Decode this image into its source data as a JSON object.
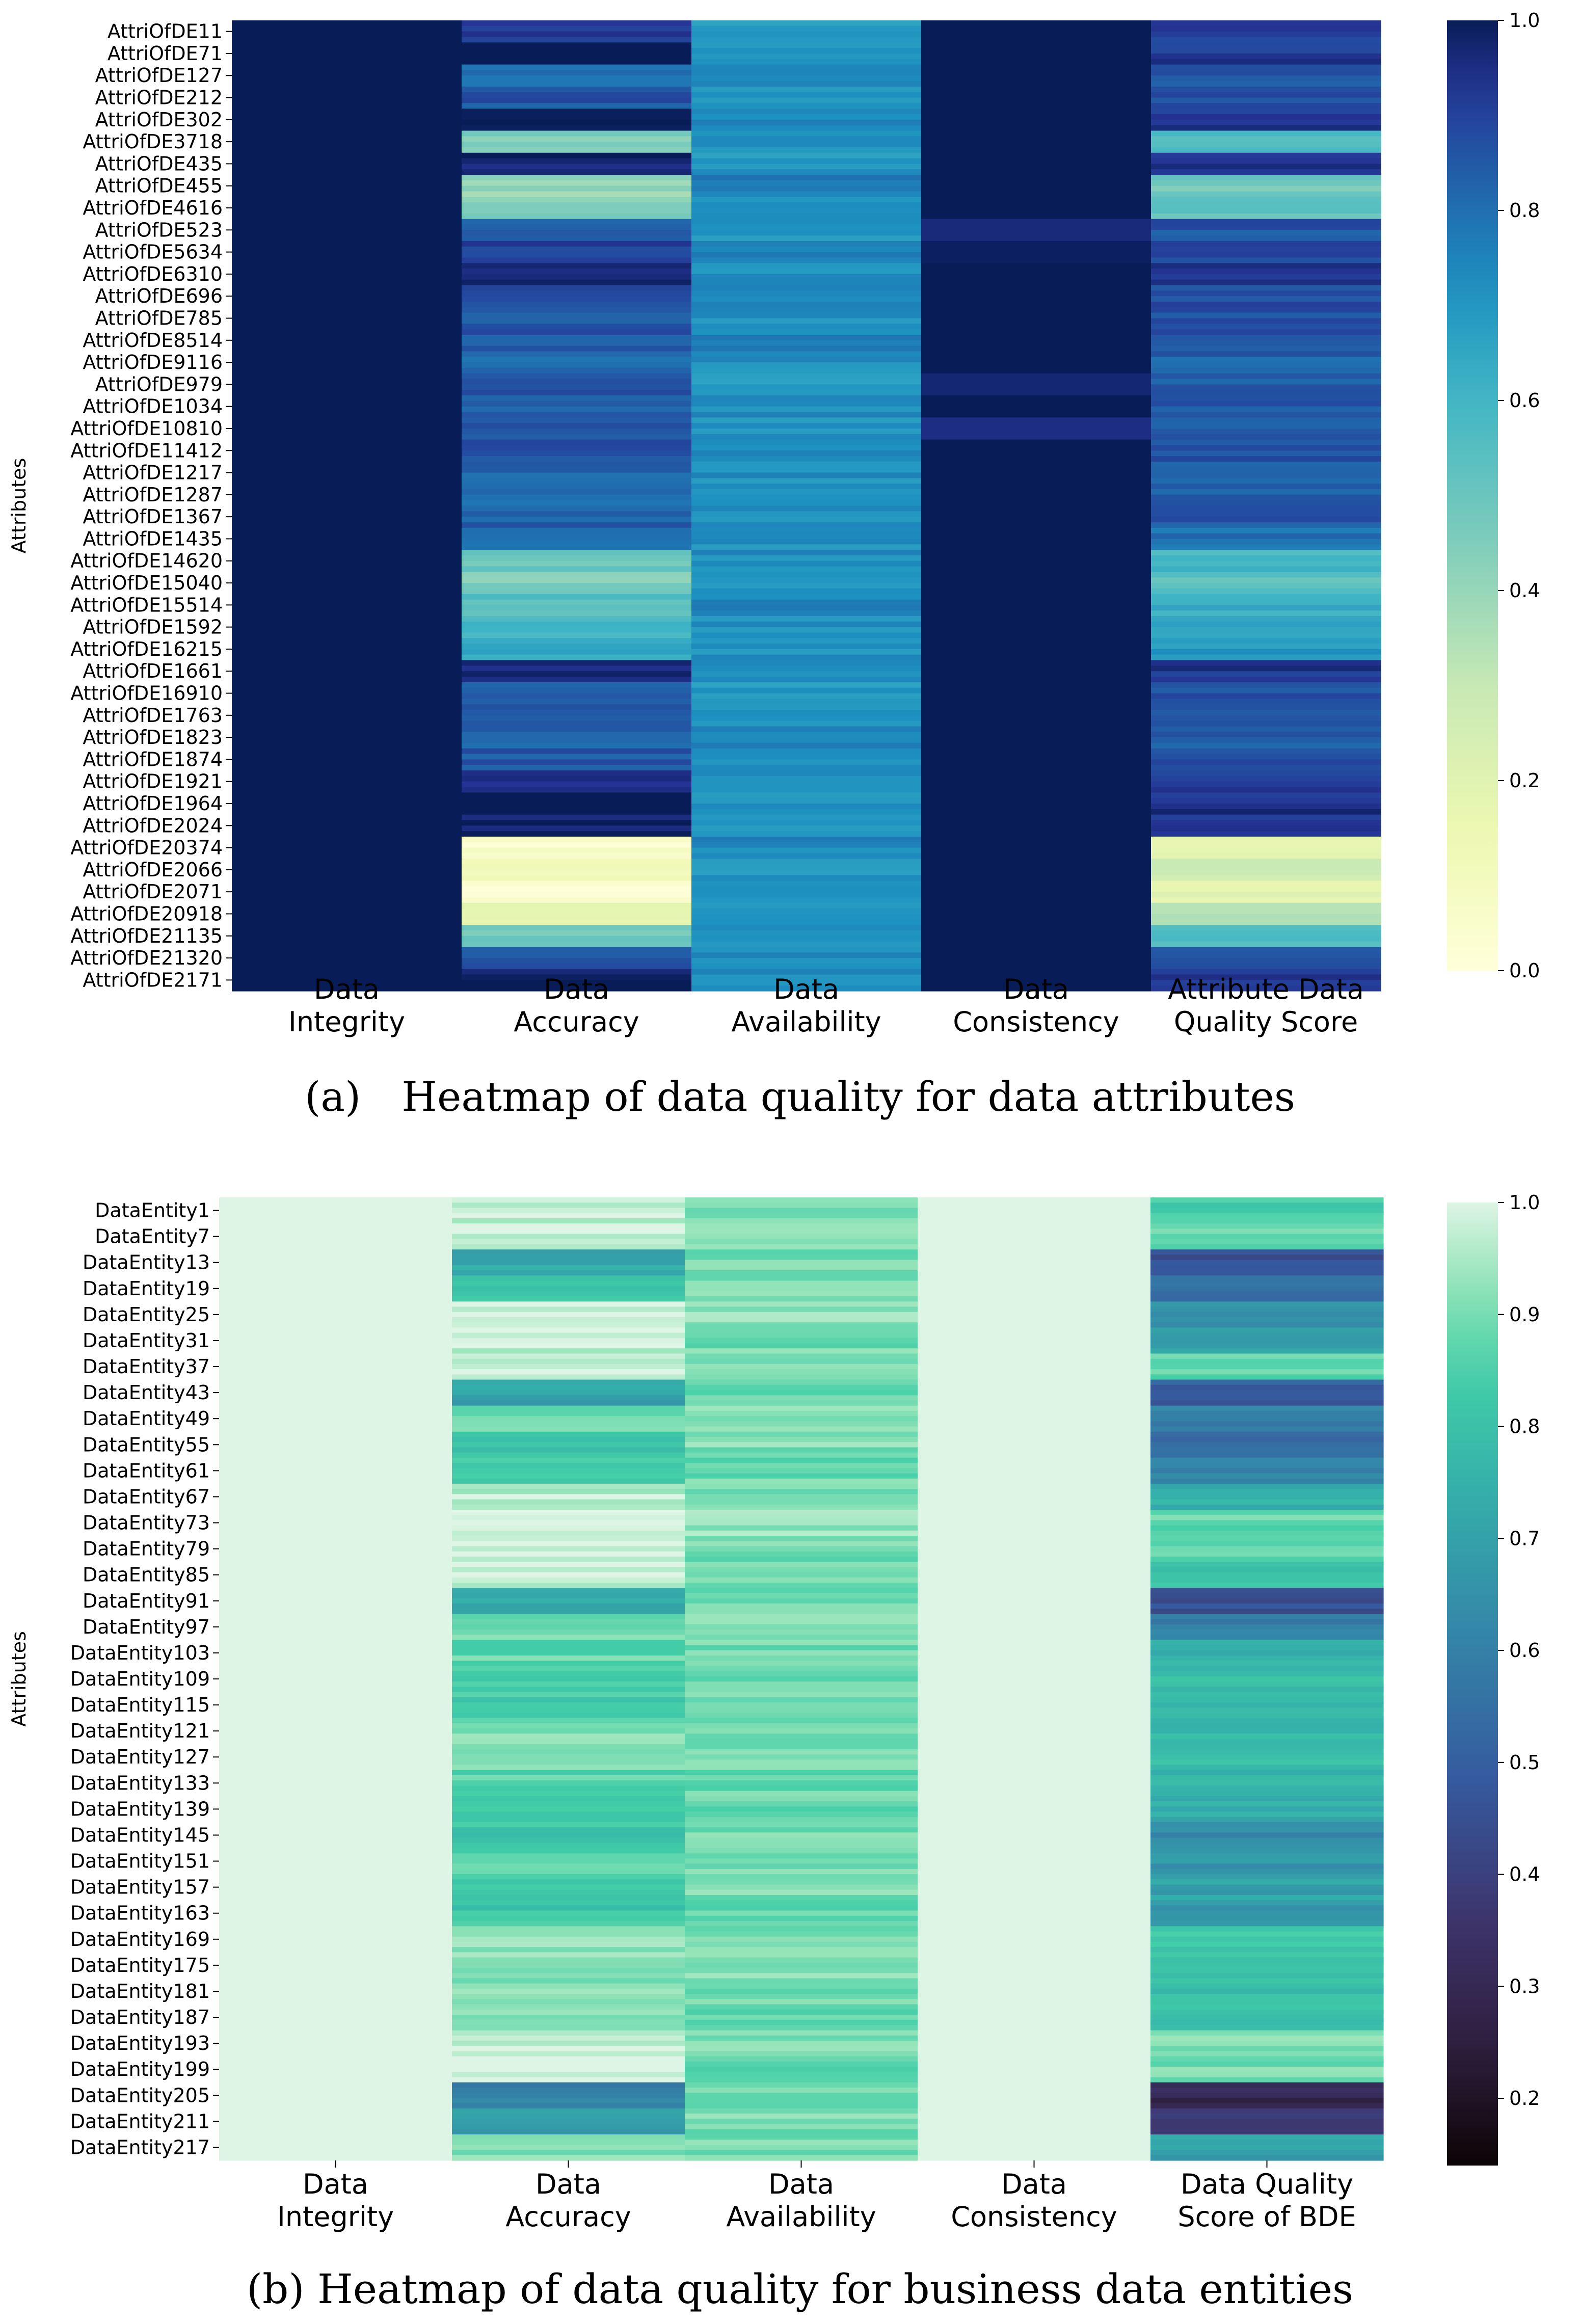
{
  "chart_data": [
    {
      "type": "heatmap",
      "caption": "(a) Heatmap of data quality for data attributes",
      "ylabel": "Attributes",
      "columns": [
        [
          "Data",
          "Integrity"
        ],
        [
          "Data",
          "Accuracy"
        ],
        [
          "Data",
          "Availability"
        ],
        [
          "Data",
          "Consistency"
        ],
        [
          "Attribute Data",
          "Quality Score"
        ]
      ],
      "row_labels": [
        "AttriOfDE11",
        "AttriOfDE71",
        "AttriOfDE127",
        "AttriOfDE212",
        "AttriOfDE302",
        "AttriOfDE3718",
        "AttriOfDE435",
        "AttriOfDE455",
        "AttriOfDE4616",
        "AttriOfDE523",
        "AttriOfDE5634",
        "AttriOfDE6310",
        "AttriOfDE696",
        "AttriOfDE785",
        "AttriOfDE8514",
        "AttriOfDE9116",
        "AttriOfDE979",
        "AttriOfDE1034",
        "AttriOfDE10810",
        "AttriOfDE11412",
        "AttriOfDE1217",
        "AttriOfDE1287",
        "AttriOfDE1367",
        "AttriOfDE1435",
        "AttriOfDE14620",
        "AttriOfDE15040",
        "AttriOfDE15514",
        "AttriOfDE1592",
        "AttriOfDE16215",
        "AttriOfDE1661",
        "AttriOfDE16910",
        "AttriOfDE1763",
        "AttriOfDE1823",
        "AttriOfDE1874",
        "AttriOfDE1921",
        "AttriOfDE1964",
        "AttriOfDE2024",
        "AttriOfDE20374",
        "AttriOfDE2066",
        "AttriOfDE2071",
        "AttriOfDE20918",
        "AttriOfDE21135",
        "AttriOfDE21320",
        "AttriOfDE2171"
      ],
      "colormap": "YlGnBu",
      "vmin": 0.0,
      "vmax": 1.0,
      "colorbar_ticks": [
        "0.0",
        "0.2",
        "0.4",
        "0.6",
        "0.8",
        "1.0"
      ],
      "row_values": [
        [
          1.0,
          0.93,
          0.7,
          1.0,
          0.9
        ],
        [
          1.0,
          1.0,
          0.72,
          1.0,
          0.92
        ],
        [
          1.0,
          0.8,
          0.74,
          1.0,
          0.84
        ],
        [
          1.0,
          0.86,
          0.71,
          1.0,
          0.86
        ],
        [
          1.0,
          0.97,
          0.75,
          1.0,
          0.93
        ],
        [
          1.0,
          0.45,
          0.73,
          1.0,
          0.55
        ],
        [
          1.0,
          0.98,
          0.7,
          1.0,
          0.93
        ],
        [
          1.0,
          0.4,
          0.76,
          1.0,
          0.48
        ],
        [
          1.0,
          0.45,
          0.72,
          1.0,
          0.52
        ],
        [
          1.0,
          0.85,
          0.7,
          0.96,
          0.86
        ],
        [
          1.0,
          0.9,
          0.74,
          0.99,
          0.9
        ],
        [
          1.0,
          0.95,
          0.72,
          1.0,
          0.92
        ],
        [
          1.0,
          0.88,
          0.73,
          1.0,
          0.88
        ],
        [
          1.0,
          0.84,
          0.71,
          1.0,
          0.86
        ],
        [
          1.0,
          0.86,
          0.75,
          1.0,
          0.87
        ],
        [
          1.0,
          0.8,
          0.72,
          1.0,
          0.83
        ],
        [
          1.0,
          0.85,
          0.7,
          0.97,
          0.85
        ],
        [
          1.0,
          0.84,
          0.73,
          1.0,
          0.86
        ],
        [
          1.0,
          0.85,
          0.71,
          0.95,
          0.85
        ],
        [
          1.0,
          0.86,
          0.74,
          1.0,
          0.87
        ],
        [
          1.0,
          0.83,
          0.72,
          1.0,
          0.85
        ],
        [
          1.0,
          0.82,
          0.7,
          1.0,
          0.84
        ],
        [
          1.0,
          0.84,
          0.73,
          1.0,
          0.86
        ],
        [
          1.0,
          0.78,
          0.71,
          1.0,
          0.8
        ],
        [
          1.0,
          0.5,
          0.72,
          1.0,
          0.58
        ],
        [
          1.0,
          0.45,
          0.7,
          1.0,
          0.53
        ],
        [
          1.0,
          0.55,
          0.74,
          1.0,
          0.62
        ],
        [
          1.0,
          0.6,
          0.72,
          1.0,
          0.66
        ],
        [
          1.0,
          0.65,
          0.71,
          1.0,
          0.7
        ],
        [
          1.0,
          0.98,
          0.73,
          1.0,
          0.93
        ],
        [
          1.0,
          0.86,
          0.7,
          1.0,
          0.87
        ],
        [
          1.0,
          0.84,
          0.72,
          1.0,
          0.86
        ],
        [
          1.0,
          0.82,
          0.74,
          1.0,
          0.85
        ],
        [
          1.0,
          0.85,
          0.71,
          1.0,
          0.86
        ],
        [
          1.0,
          0.96,
          0.73,
          1.0,
          0.92
        ],
        [
          1.0,
          1.0,
          0.7,
          1.0,
          0.94
        ],
        [
          1.0,
          0.99,
          0.72,
          1.0,
          0.93
        ],
        [
          1.0,
          0.05,
          0.74,
          1.0,
          0.2
        ],
        [
          1.0,
          0.12,
          0.71,
          1.0,
          0.28
        ],
        [
          1.0,
          0.03,
          0.73,
          1.0,
          0.18
        ],
        [
          1.0,
          0.2,
          0.72,
          1.0,
          0.33
        ],
        [
          1.0,
          0.48,
          0.7,
          1.0,
          0.56
        ],
        [
          1.0,
          0.85,
          0.74,
          1.0,
          0.87
        ],
        [
          1.0,
          0.97,
          0.72,
          1.0,
          0.93
        ]
      ]
    },
    {
      "type": "heatmap",
      "caption": "(b) Heatmap of data quality for business data entities",
      "ylabel": "Attributes",
      "columns": [
        [
          "Data",
          "Integrity"
        ],
        [
          "Data",
          "Accuracy"
        ],
        [
          "Data",
          "Availability"
        ],
        [
          "Data",
          "Consistency"
        ],
        [
          "Data Quality",
          "Score of BDE"
        ]
      ],
      "row_labels": [
        "DataEntity1",
        "DataEntity7",
        "DataEntity13",
        "DataEntity19",
        "DataEntity25",
        "DataEntity31",
        "DataEntity37",
        "DataEntity43",
        "DataEntity49",
        "DataEntity55",
        "DataEntity61",
        "DataEntity67",
        "DataEntity73",
        "DataEntity79",
        "DataEntity85",
        "DataEntity91",
        "DataEntity97",
        "DataEntity103",
        "DataEntity109",
        "DataEntity115",
        "DataEntity121",
        "DataEntity127",
        "DataEntity133",
        "DataEntity139",
        "DataEntity145",
        "DataEntity151",
        "DataEntity157",
        "DataEntity163",
        "DataEntity169",
        "DataEntity175",
        "DataEntity181",
        "DataEntity187",
        "DataEntity193",
        "DataEntity199",
        "DataEntity205",
        "DataEntity211",
        "DataEntity217"
      ],
      "colormap": "mako",
      "vmin": 0.14,
      "vmax": 1.0,
      "colorbar_ticks": [
        "0.2",
        "0.3",
        "0.4",
        "0.5",
        "0.6",
        "0.7",
        "0.8",
        "0.9",
        "1.0"
      ],
      "row_values": [
        [
          1.0,
          0.98,
          0.9,
          1.0,
          0.85
        ],
        [
          1.0,
          0.99,
          0.91,
          1.0,
          0.88
        ],
        [
          1.0,
          0.72,
          0.89,
          1.0,
          0.45
        ],
        [
          1.0,
          0.8,
          0.9,
          1.0,
          0.55
        ],
        [
          1.0,
          0.98,
          0.92,
          1.0,
          0.65
        ],
        [
          1.0,
          0.97,
          0.9,
          1.0,
          0.7
        ],
        [
          1.0,
          0.99,
          0.91,
          1.0,
          0.88
        ],
        [
          1.0,
          0.7,
          0.89,
          1.0,
          0.5
        ],
        [
          1.0,
          0.88,
          0.9,
          1.0,
          0.6
        ],
        [
          1.0,
          0.8,
          0.91,
          1.0,
          0.55
        ],
        [
          1.0,
          0.85,
          0.89,
          1.0,
          0.6
        ],
        [
          1.0,
          0.97,
          0.9,
          1.0,
          0.75
        ],
        [
          1.0,
          0.99,
          0.92,
          1.0,
          0.88
        ],
        [
          1.0,
          0.99,
          0.9,
          1.0,
          0.86
        ],
        [
          1.0,
          0.98,
          0.89,
          1.0,
          0.8
        ],
        [
          1.0,
          0.72,
          0.9,
          1.0,
          0.45
        ],
        [
          1.0,
          0.9,
          0.91,
          1.0,
          0.6
        ],
        [
          1.0,
          0.88,
          0.9,
          1.0,
          0.75
        ],
        [
          1.0,
          0.86,
          0.89,
          1.0,
          0.78
        ],
        [
          1.0,
          0.84,
          0.9,
          1.0,
          0.76
        ],
        [
          1.0,
          0.9,
          0.91,
          1.0,
          0.78
        ],
        [
          1.0,
          0.92,
          0.9,
          1.0,
          0.8
        ],
        [
          1.0,
          0.86,
          0.88,
          1.0,
          0.75
        ],
        [
          1.0,
          0.84,
          0.89,
          1.0,
          0.74
        ],
        [
          1.0,
          0.82,
          0.9,
          1.0,
          0.62
        ],
        [
          1.0,
          0.86,
          0.91,
          1.0,
          0.66
        ],
        [
          1.0,
          0.84,
          0.9,
          1.0,
          0.7
        ],
        [
          1.0,
          0.82,
          0.89,
          1.0,
          0.68
        ],
        [
          1.0,
          0.92,
          0.9,
          1.0,
          0.82
        ],
        [
          1.0,
          0.93,
          0.91,
          1.0,
          0.82
        ],
        [
          1.0,
          0.91,
          0.9,
          1.0,
          0.8
        ],
        [
          1.0,
          0.93,
          0.89,
          1.0,
          0.8
        ],
        [
          1.0,
          0.99,
          0.9,
          1.0,
          0.92
        ],
        [
          1.0,
          0.99,
          0.88,
          1.0,
          0.9
        ],
        [
          1.0,
          0.6,
          0.89,
          1.0,
          0.3
        ],
        [
          1.0,
          0.7,
          0.9,
          1.0,
          0.4
        ],
        [
          1.0,
          0.92,
          0.91,
          1.0,
          0.7
        ]
      ]
    }
  ]
}
